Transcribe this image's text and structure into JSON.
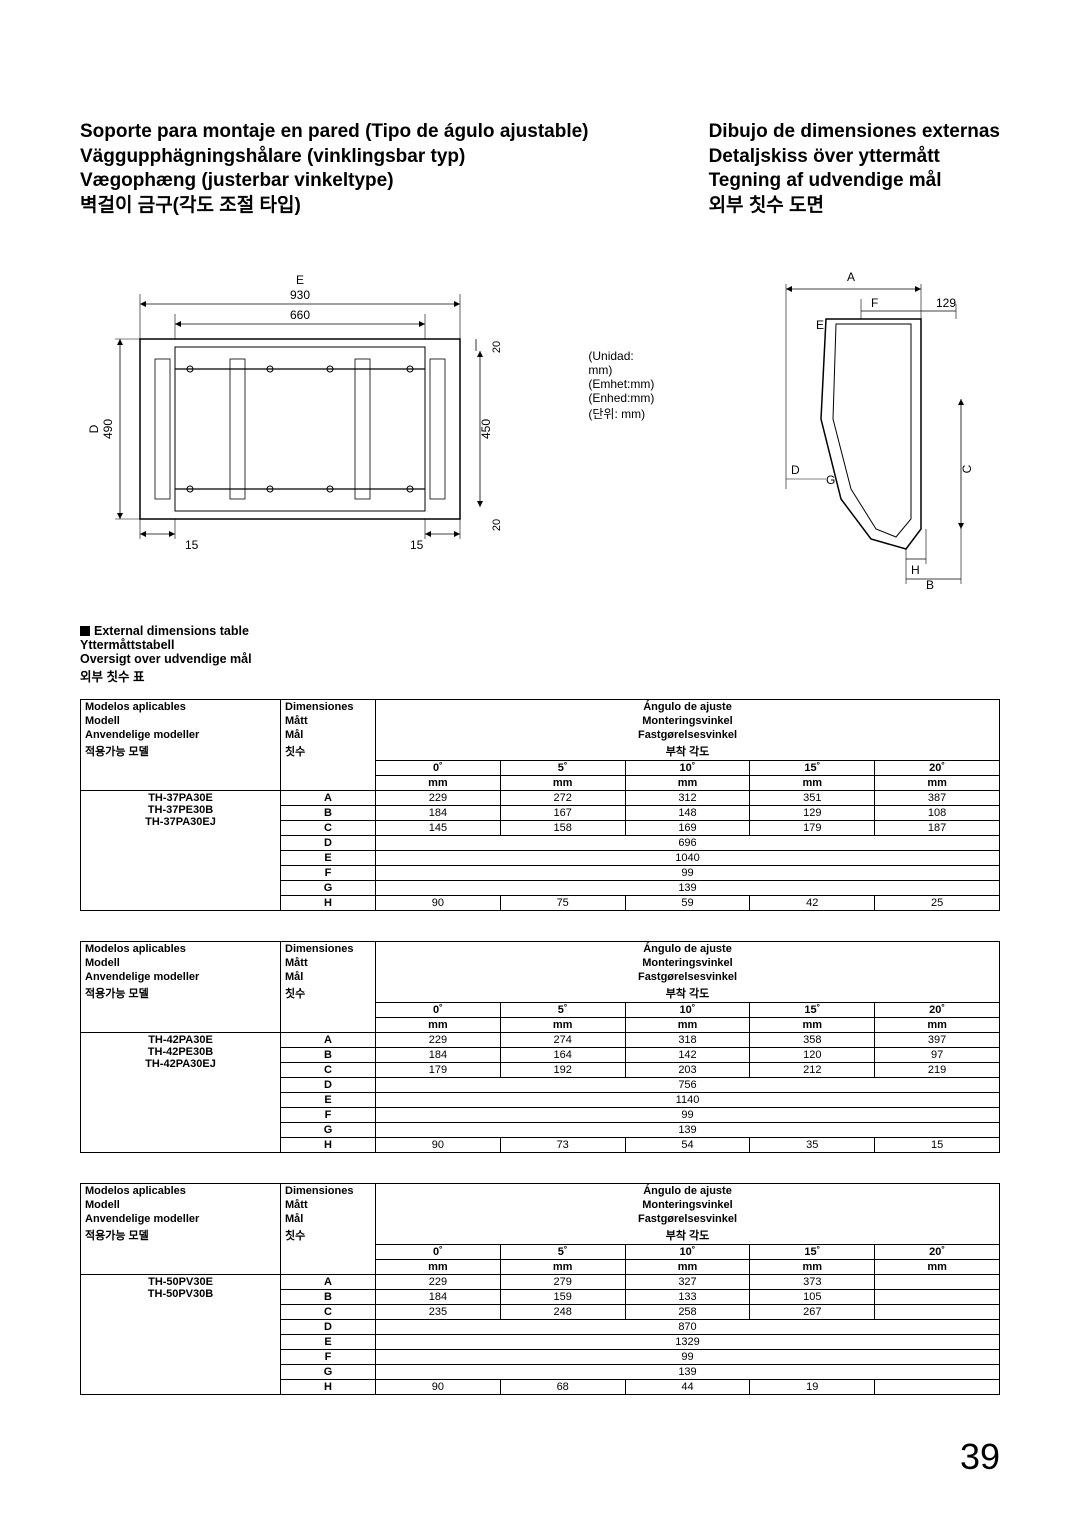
{
  "titles_left": [
    "Soporte para montaje en pared (Tipo de águlo ajustable)",
    "Väggupphägningshålare (vinklingsbar typ)",
    "Vægophæng (justerbar vinkeltype)",
    "벽걸이 금구(각도 조절 타입)"
  ],
  "titles_right": [
    "Dibujo de dimensiones externas",
    "Detaljskiss över yttermått",
    "Tegning af udvendige mål",
    "외부 칫수 도면"
  ],
  "unit_labels": [
    "(Unidad: mm)",
    "(Emhet:mm)",
    "(Enhed:mm)",
    "(단위: mm)"
  ],
  "front_diagram": {
    "E": "930",
    "inner_w": "660",
    "D": "490",
    "inner_h": "450",
    "margin_side": "15",
    "margin_v": "20"
  },
  "side_diagram": {
    "A": "A",
    "B": "B",
    "C": "C",
    "D": "D",
    "E": "E",
    "F": "F",
    "G": "G",
    "H": "H",
    "val": "129"
  },
  "section_heading": [
    "External dimensions table",
    "Yttermåttstabell",
    "Oversigt over udvendige mål",
    "외부 칫수 표"
  ],
  "col_headers_left": [
    "Modelos aplicables",
    "Modell",
    "Anvendelige modeller",
    "적용가능 모델"
  ],
  "col_headers_dim": [
    "Dimensiones",
    "Mått",
    "Mål",
    "칫수"
  ],
  "col_headers_angle": [
    "Ángulo de ajuste",
    "Monteringsvinkel",
    "Fastgørelsesvinkel",
    "부착 각도"
  ],
  "angle_degrees": [
    "0˚",
    "5˚",
    "10˚",
    "15˚",
    "20˚"
  ],
  "mm": "mm",
  "tables": [
    {
      "models": [
        "TH-37PA30E",
        "TH-37PE30B",
        "TH-37PA30EJ"
      ],
      "rows": [
        {
          "d": "A",
          "v": [
            "229",
            "272",
            "312",
            "351",
            "387"
          ]
        },
        {
          "d": "B",
          "v": [
            "184",
            "167",
            "148",
            "129",
            "108"
          ]
        },
        {
          "d": "C",
          "v": [
            "145",
            "158",
            "169",
            "179",
            "187"
          ]
        },
        {
          "d": "D",
          "span": "696"
        },
        {
          "d": "E",
          "span": "1040"
        },
        {
          "d": "F",
          "span": "99"
        },
        {
          "d": "G",
          "span": "139"
        },
        {
          "d": "H",
          "v": [
            "90",
            "75",
            "59",
            "42",
            "25"
          ]
        }
      ]
    },
    {
      "models": [
        "TH-42PA30E",
        "TH-42PE30B",
        "TH-42PA30EJ"
      ],
      "rows": [
        {
          "d": "A",
          "v": [
            "229",
            "274",
            "318",
            "358",
            "397"
          ]
        },
        {
          "d": "B",
          "v": [
            "184",
            "164",
            "142",
            "120",
            "97"
          ]
        },
        {
          "d": "C",
          "v": [
            "179",
            "192",
            "203",
            "212",
            "219"
          ]
        },
        {
          "d": "D",
          "span": "756"
        },
        {
          "d": "E",
          "span": "1140"
        },
        {
          "d": "F",
          "span": "99"
        },
        {
          "d": "G",
          "span": "139"
        },
        {
          "d": "H",
          "v": [
            "90",
            "73",
            "54",
            "35",
            "15"
          ]
        }
      ]
    },
    {
      "models": [
        "TH-50PV30E",
        "TH-50PV30B"
      ],
      "rows": [
        {
          "d": "A",
          "v": [
            "229",
            "279",
            "327",
            "373",
            ""
          ]
        },
        {
          "d": "B",
          "v": [
            "184",
            "159",
            "133",
            "105",
            ""
          ]
        },
        {
          "d": "C",
          "v": [
            "235",
            "248",
            "258",
            "267",
            ""
          ]
        },
        {
          "d": "D",
          "span": "870"
        },
        {
          "d": "E",
          "span": "1329"
        },
        {
          "d": "F",
          "span": "99"
        },
        {
          "d": "G",
          "span": "139"
        },
        {
          "d": "H",
          "v": [
            "90",
            "68",
            "44",
            "19",
            ""
          ]
        }
      ]
    }
  ],
  "page_number": "39",
  "colors": {
    "text": "#000000",
    "border": "#000000",
    "bg": "#ffffff"
  }
}
